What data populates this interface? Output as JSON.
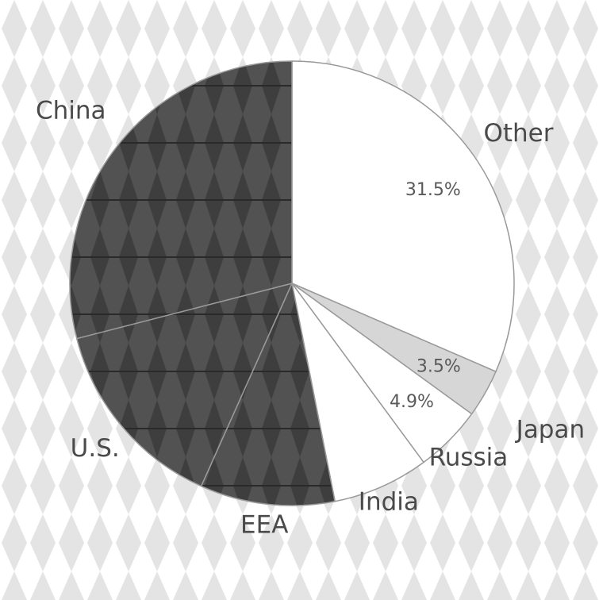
{
  "chart_data": {
    "type": "pie",
    "title": "",
    "categories": [
      "Other",
      "Japan",
      "Russia",
      "India",
      "EEA",
      "U.S.",
      "China"
    ],
    "values": [
      31.5,
      3.5,
      4.9,
      7.0,
      9.8,
      14.3,
      29.0
    ],
    "value_labels": [
      "31.5%",
      "3.5%",
      "4.9%",
      "",
      "",
      "",
      ""
    ],
    "start_angle_deg": 90,
    "direction": "clockwise",
    "colors": {
      "Other": "#ffffff",
      "Japan": "#d6d6d6",
      "Russia": "#ffffff",
      "India": "#ffffff",
      "EEA": "#3a3a3a",
      "U.S.": "#5a5a5a",
      "China": "#5a5a5a"
    },
    "legend": "none"
  },
  "colors": {
    "background": "#ffffff",
    "pattern_light": "#e4e4e4",
    "outline": "#9a9a9a"
  }
}
